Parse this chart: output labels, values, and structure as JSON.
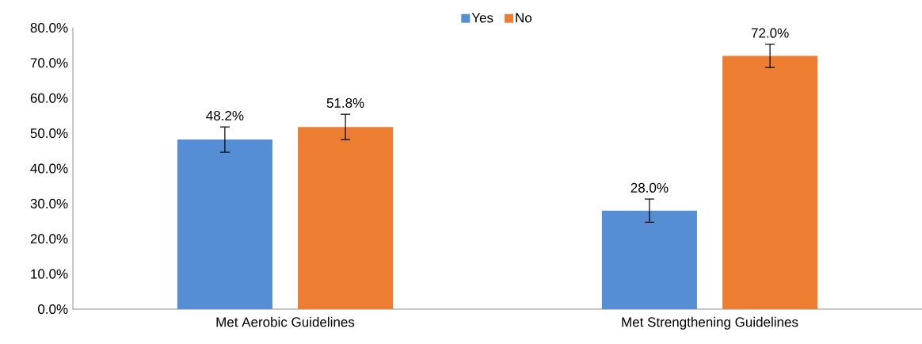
{
  "chart_data": {
    "type": "bar",
    "categories": [
      "Met Aerobic Guidelines",
      "Met Strengthening Guidelines"
    ],
    "series": [
      {
        "name": "Yes",
        "color": "#558ed5",
        "values": [
          48.2,
          28.0
        ],
        "errors": [
          3.6,
          3.3
        ],
        "value_labels": [
          "48.2%",
          "28.0%"
        ]
      },
      {
        "name": "No",
        "color": "#ed7d31",
        "values": [
          51.8,
          72.0
        ],
        "errors": [
          3.6,
          3.3
        ],
        "value_labels": [
          "51.8%",
          "72.0%"
        ]
      }
    ],
    "ylim": [
      0,
      80
    ],
    "yticks": [
      {
        "value": 0,
        "label": "0.0%"
      },
      {
        "value": 10,
        "label": "10.0%"
      },
      {
        "value": 20,
        "label": "20.0%"
      },
      {
        "value": 30,
        "label": "30.0%"
      },
      {
        "value": 40,
        "label": "40.0%"
      },
      {
        "value": 50,
        "label": "50.0%"
      },
      {
        "value": 60,
        "label": "60.0%"
      },
      {
        "value": 70,
        "label": "70.0%"
      },
      {
        "value": 80,
        "label": "80.0%"
      }
    ],
    "legend": "top",
    "grid": false
  }
}
